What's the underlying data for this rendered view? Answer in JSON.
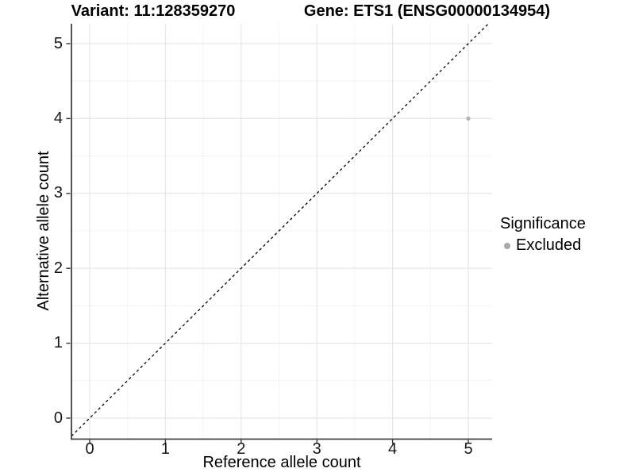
{
  "chart_data": {
    "type": "scatter",
    "titles": [
      "Variant: 11:128359270",
      "Gene: ETS1 (ENSG00000134954)"
    ],
    "xlabel": "Reference allele count",
    "ylabel": "Alternative allele count",
    "x_ticks": [
      0,
      1,
      2,
      3,
      4,
      5
    ],
    "y_ticks": [
      0,
      1,
      2,
      3,
      4,
      5
    ],
    "xlim": [
      -0.25,
      5.3
    ],
    "ylim": [
      -0.27,
      5.27
    ],
    "grid": {
      "major": true,
      "minor": true,
      "minor_step": 0.5
    },
    "points": [
      {
        "x": 5,
        "y": 4,
        "category": "Excluded"
      }
    ],
    "identity_line": {
      "equation": "y = x",
      "style": "dashed",
      "color": "#000000"
    },
    "legend": {
      "title": "Significance",
      "position": "right",
      "items": [
        {
          "label": "Excluded",
          "color": "#a8a8a8"
        }
      ]
    },
    "colors": {
      "point": "#b3b3b3",
      "grid_major": "#e6e6e6",
      "grid_minor": "#f3f3f3",
      "axis": "#3f3f3f",
      "tick": "#333333"
    }
  }
}
